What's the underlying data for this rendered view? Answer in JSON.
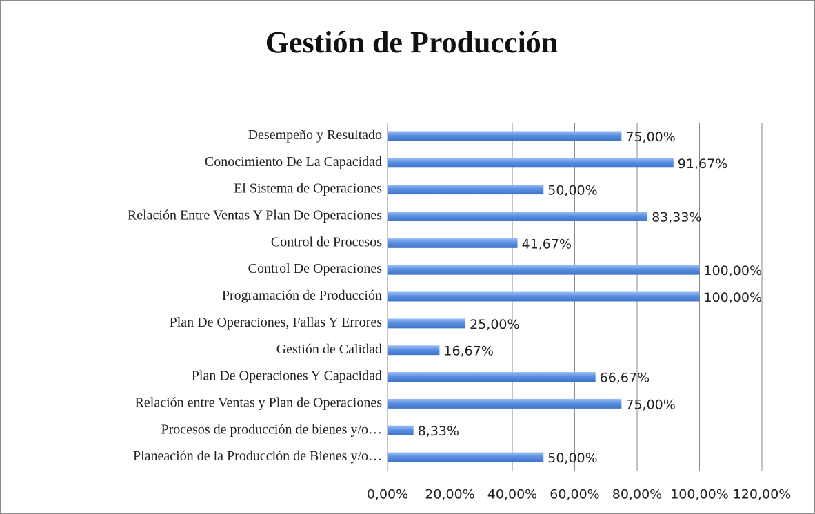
{
  "chart_data": {
    "type": "bar",
    "orientation": "horizontal",
    "title": "Gestión de Producción",
    "categories": [
      "Desempeño y Resultado",
      "Conocimiento De La Capacidad",
      "El Sistema de Operaciones",
      "Relación Entre Ventas Y Plan De Operaciones",
      "Control de Procesos",
      "Control De Operaciones",
      "Programación de Producción",
      "Plan De Operaciones, Fallas Y Errores",
      "Gestión de Calidad",
      "Plan De Operaciones Y Capacidad",
      "Relación entre Ventas y Plan de Operaciones",
      "Procesos de producción de bienes y/o…",
      "Planeación de la Producción de Bienes y/o…"
    ],
    "values": [
      75,
      91.67,
      50,
      83.33,
      41.67,
      100,
      100,
      25,
      16.67,
      66.67,
      75,
      8.33,
      50
    ],
    "value_labels": [
      "75,00%",
      "91,67%",
      "50,00%",
      "83,33%",
      "41,67%",
      "100,00%",
      "100,00%",
      "25,00%",
      "16,67%",
      "66,67%",
      "75,00%",
      "8,33%",
      "50,00%"
    ],
    "color": "#5b8fe0",
    "xlim": [
      0,
      120
    ],
    "xticks": [
      {
        "value": 0,
        "label": "0,00%"
      },
      {
        "value": 20,
        "label": "20,00%"
      },
      {
        "value": 40,
        "label": "40,00%"
      },
      {
        "value": 60,
        "label": "60,00%"
      },
      {
        "value": 80,
        "label": "80,00%"
      },
      {
        "value": 100,
        "label": "100,00%"
      },
      {
        "value": 120,
        "label": "120,00%"
      }
    ],
    "grid": true
  }
}
